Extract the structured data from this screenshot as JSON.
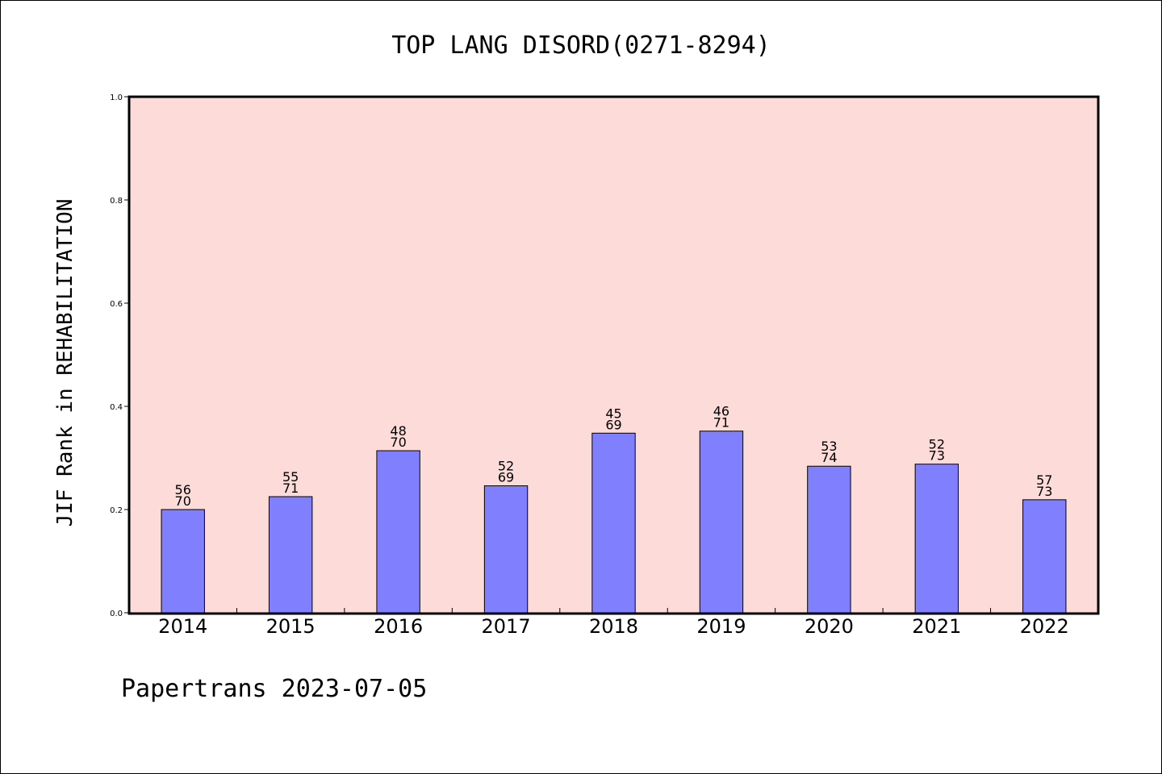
{
  "chart_data": {
    "type": "bar",
    "title": "TOP LANG DISORD(0271-8294)",
    "ylabel": "JIF Rank in REHABILITATION",
    "xlabel": "",
    "categories": [
      "2014",
      "2015",
      "2016",
      "2017",
      "2018",
      "2019",
      "2020",
      "2021",
      "2022"
    ],
    "values": [
      0.2,
      0.225,
      0.314,
      0.246,
      0.348,
      0.352,
      0.284,
      0.288,
      0.219
    ],
    "rank": [
      "56",
      "55",
      "48",
      "52",
      "45",
      "46",
      "53",
      "52",
      "57"
    ],
    "total": [
      "70",
      "71",
      "70",
      "69",
      "69",
      "71",
      "74",
      "73",
      "73"
    ],
    "ylim": [
      0.0,
      1.0
    ],
    "yticks": [
      "0.0",
      "0.2",
      "0.4",
      "0.6",
      "0.8",
      "1.0"
    ],
    "grid": false,
    "colors": {
      "plot_background": "#fddbd8",
      "bar_fill": "#8080ff",
      "bar_edge": "#000000"
    }
  },
  "footer": {
    "text": "Papertrans 2023-07-05"
  }
}
